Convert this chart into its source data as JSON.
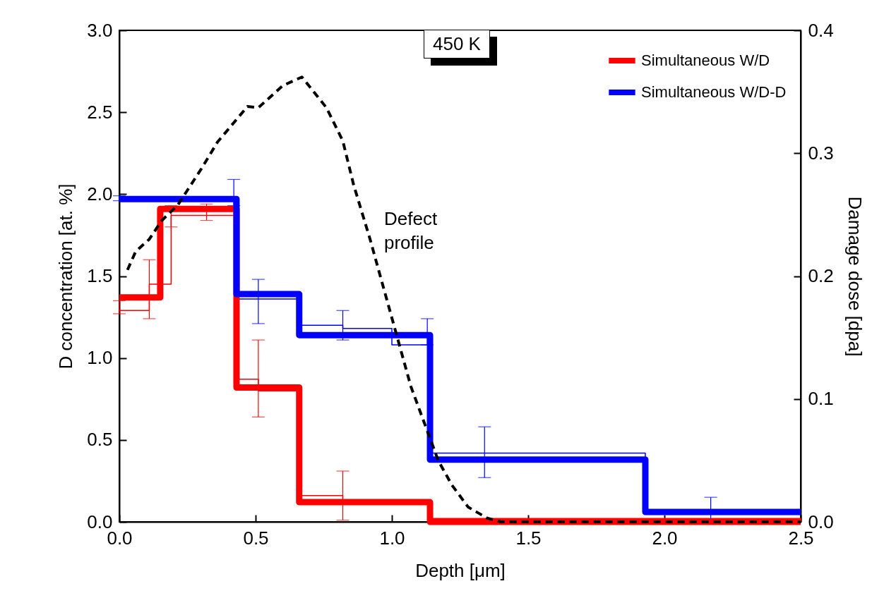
{
  "chart_data": {
    "type": "step",
    "xlabel": "Depth [μm]",
    "ylabel": "D concentration [at. %]",
    "y2label": "Damage dose [dpa]",
    "xlim": [
      0,
      2.5
    ],
    "xticks": [
      {
        "value": 0,
        "label": "0.0"
      },
      0.5,
      {
        "value": 1,
        "label": "1.0"
      },
      1.5,
      {
        "value": 2,
        "label": "2.0"
      },
      2.5
    ],
    "ylim": [
      0,
      3
    ],
    "yticks": [
      {
        "value": 0,
        "label": "0.0"
      },
      0.5,
      {
        "value": 1,
        "label": "1.0"
      },
      1.5,
      {
        "value": 2,
        "label": "2.0"
      },
      2.5,
      {
        "value": 3,
        "label": "3.0"
      }
    ],
    "y2lim": [
      0,
      0.4
    ],
    "y2ticks": [
      {
        "value": 0,
        "label": "0.0"
      },
      0.1,
      0.2,
      0.3,
      0.4
    ],
    "legend": "top right",
    "annotations": [
      "450 K"
    ],
    "series": [
      {
        "color": "#ff0000",
        "x": [
          0,
          0.11,
          0.19,
          0.32,
          0.43,
          0.51,
          0.66,
          0.82,
          1.14,
          2.5
        ],
        "values": [
          1.29,
          1.45,
          1.87,
          1.87,
          0.87,
          0.8,
          0.16,
          0.12,
          0.02,
          0.0
        ],
        "errors": [
          [
            1.27,
            1.35
          ],
          [
            1.24,
            1.6
          ],
          [
            1.8,
            1.93
          ],
          [
            1.84,
            1.94
          ],
          null,
          [
            0.64,
            1.11
          ],
          null,
          [
            0.01,
            0.31
          ],
          null,
          null
        ]
      },
      {
        "color": "#0000ff",
        "x": [
          0,
          0.42,
          0.43,
          0.51,
          0.66,
          0.82,
          1.0,
          1.13,
          1.14,
          1.34,
          1.93,
          2.17,
          2.5
        ],
        "values": [
          1.98,
          1.98,
          1.36,
          1.36,
          1.2,
          1.18,
          1.08,
          1.08,
          0.42,
          0.42,
          0.06,
          0.06,
          0.06
        ],
        "errors": [
          [
            1.96,
            1.99
          ],
          [
            1.93,
            2.09
          ],
          null,
          [
            1.21,
            1.48
          ],
          null,
          [
            1.11,
            1.29
          ],
          null,
          [
            1.08,
            1.24
          ],
          null,
          [
            0.27,
            0.58
          ],
          null,
          [
            0.01,
            0.15
          ],
          null
        ]
      },
      {
        "name": "Simultaneous W/D",
        "color": "#ff0000",
        "x": [
          0,
          0.15,
          0.43,
          0.66,
          1.14,
          2.5
        ],
        "values": [
          1.37,
          1.91,
          0.82,
          0.12,
          0.0,
          0.0
        ]
      },
      {
        "name": "Simultaneous W/D-D",
        "color": "#0000ff",
        "x": [
          0,
          0.43,
          0.66,
          1.14,
          1.93,
          2.5
        ],
        "values": [
          1.97,
          1.39,
          1.14,
          0.38,
          0.06,
          0.06
        ]
      },
      {
        "name": "Defect profile",
        "type": "line",
        "axis": "y2",
        "line_style": "dashed",
        "color": "#000000",
        "x": [
          0.03,
          0.06,
          0.11,
          0.155,
          0.215,
          0.3,
          0.36,
          0.47,
          0.51,
          0.6,
          0.67,
          0.76,
          0.82,
          0.86,
          0.92,
          0.97,
          1.02,
          1.07,
          1.12,
          1.17,
          1.22,
          1.28,
          1.35,
          1.4,
          1.6,
          2.0,
          2.5
        ],
        "values": [
          0.205,
          0.22,
          0.23,
          0.245,
          0.258,
          0.287,
          0.309,
          0.338,
          0.337,
          0.355,
          0.362,
          0.337,
          0.31,
          0.274,
          0.23,
          0.19,
          0.15,
          0.11,
          0.08,
          0.05,
          0.03,
          0.012,
          0.003,
          0.0,
          0.0,
          0.0,
          0.0
        ]
      }
    ]
  }
}
